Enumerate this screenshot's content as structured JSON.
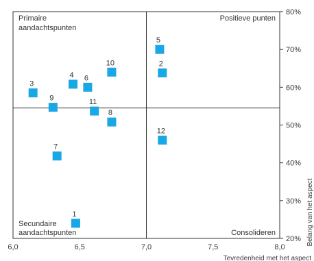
{
  "chart_data": {
    "type": "scatter",
    "xlabel": "Tevredenheid met het aspect",
    "ylabel": "Belang  van het aspect",
    "xlim": [
      6.0,
      8.0
    ],
    "ylim": [
      20,
      80
    ],
    "x_ticks": [
      "6,0",
      "6,5",
      "7,0",
      "7,5",
      "8,0"
    ],
    "y_ticks": [
      "20%",
      "30%",
      "40%",
      "50%",
      "60%",
      "70%",
      "80%"
    ],
    "divider_x": 7.0,
    "divider_y": 54.5,
    "quadrants": {
      "top_left": [
        "Primaire",
        "aandachtspunten"
      ],
      "top_right": [
        "Positieve punten"
      ],
      "bottom_left": [
        "Secundaire",
        "aandachtspunten"
      ],
      "bottom_right": [
        "Consolideren"
      ]
    },
    "marker_color": "#1aa7e6",
    "points": [
      {
        "label": "1",
        "x": 6.47,
        "y": 24.0
      },
      {
        "label": "2",
        "x": 7.12,
        "y": 63.8
      },
      {
        "label": "3",
        "x": 6.15,
        "y": 58.5
      },
      {
        "label": "4",
        "x": 6.45,
        "y": 60.8
      },
      {
        "label": "5",
        "x": 7.1,
        "y": 70.0
      },
      {
        "label": "6",
        "x": 6.56,
        "y": 60.0
      },
      {
        "label": "7",
        "x": 6.33,
        "y": 41.8
      },
      {
        "label": "8",
        "x": 6.74,
        "y": 50.8
      },
      {
        "label": "9",
        "x": 6.3,
        "y": 54.7
      },
      {
        "label": "10",
        "x": 6.74,
        "y": 64.0
      },
      {
        "label": "11",
        "x": 6.61,
        "y": 53.7
      },
      {
        "label": "12",
        "x": 7.12,
        "y": 46.0
      }
    ]
  }
}
